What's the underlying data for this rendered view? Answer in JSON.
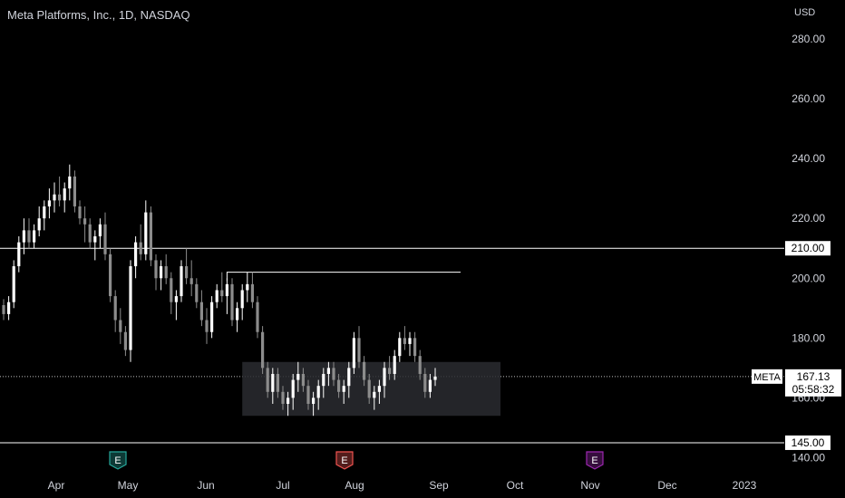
{
  "header": {
    "title": "Meta Platforms, Inc., 1D, NASDAQ",
    "currency": "USD"
  },
  "chart_data": {
    "type": "candlestick",
    "y_ticks": [
      "280.00",
      "260.00",
      "240.00",
      "220.00",
      "200.00",
      "180.00",
      "160.00",
      "140.00"
    ],
    "y_tick_values": [
      280,
      260,
      240,
      220,
      200,
      180,
      160,
      140
    ],
    "ylim": [
      135,
      293
    ],
    "x_ticks": [
      "Apr",
      "May",
      "Jun",
      "Jul",
      "Aug",
      "Sep",
      "Oct",
      "Nov",
      "Dec",
      "2023"
    ],
    "grid": false,
    "horizontal_levels": [
      {
        "value": 210,
        "label": "210.00"
      },
      {
        "value": 145,
        "label": "145.00"
      }
    ],
    "resistance_segment": {
      "value": 202
    },
    "consolidation_box": {
      "low": 154,
      "high": 172
    },
    "last_price": {
      "ticker": "META",
      "value": 167.13,
      "label": "167.13",
      "countdown": "05:58:32"
    },
    "earnings_markers": [
      {
        "label": "E",
        "color": "#26a69a"
      },
      {
        "label": "E",
        "color": "#ef5350"
      },
      {
        "label": "E",
        "color": "#9c27b0"
      }
    ],
    "candles": [
      [
        191,
        193,
        186,
        188
      ],
      [
        188,
        194,
        186,
        192
      ],
      [
        192,
        206,
        190,
        204
      ],
      [
        204,
        214,
        202,
        212
      ],
      [
        212,
        220,
        208,
        216
      ],
      [
        216,
        220,
        210,
        212
      ],
      [
        212,
        218,
        210,
        216
      ],
      [
        216,
        224,
        214,
        220
      ],
      [
        220,
        226,
        216,
        224
      ],
      [
        224,
        230,
        220,
        226
      ],
      [
        226,
        232,
        222,
        228
      ],
      [
        228,
        234,
        224,
        226
      ],
      [
        226,
        232,
        222,
        230
      ],
      [
        230,
        238,
        226,
        234
      ],
      [
        234,
        236,
        222,
        224
      ],
      [
        224,
        226,
        218,
        220
      ],
      [
        220,
        224,
        212,
        218
      ],
      [
        218,
        220,
        210,
        212
      ],
      [
        212,
        216,
        206,
        214
      ],
      [
        214,
        220,
        210,
        218
      ],
      [
        218,
        222,
        206,
        208
      ],
      [
        208,
        210,
        192,
        194
      ],
      [
        194,
        196,
        182,
        186
      ],
      [
        186,
        190,
        178,
        182
      ],
      [
        182,
        184,
        174,
        176
      ],
      [
        176,
        206,
        172,
        204
      ],
      [
        204,
        214,
        200,
        212
      ],
      [
        212,
        218,
        206,
        208
      ],
      [
        208,
        226,
        206,
        222
      ],
      [
        222,
        224,
        204,
        206
      ],
      [
        206,
        208,
        196,
        200
      ],
      [
        200,
        206,
        196,
        204
      ],
      [
        204,
        208,
        198,
        200
      ],
      [
        200,
        202,
        188,
        192
      ],
      [
        192,
        196,
        186,
        194
      ],
      [
        194,
        206,
        192,
        204
      ],
      [
        204,
        210,
        198,
        200
      ],
      [
        200,
        206,
        194,
        198
      ],
      [
        198,
        200,
        190,
        192
      ],
      [
        192,
        196,
        184,
        186
      ],
      [
        186,
        190,
        178,
        182
      ],
      [
        182,
        194,
        180,
        192
      ],
      [
        192,
        198,
        190,
        196
      ],
      [
        196,
        202,
        192,
        194
      ],
      [
        194,
        200,
        188,
        198
      ],
      [
        198,
        200,
        184,
        186
      ],
      [
        186,
        192,
        182,
        190
      ],
      [
        190,
        198,
        186,
        196
      ],
      [
        196,
        202,
        192,
        198
      ],
      [
        198,
        202,
        190,
        192
      ],
      [
        192,
        194,
        180,
        182
      ],
      [
        182,
        184,
        168,
        170
      ],
      [
        170,
        172,
        160,
        162
      ],
      [
        162,
        170,
        158,
        168
      ],
      [
        168,
        170,
        160,
        162
      ],
      [
        162,
        164,
        156,
        158
      ],
      [
        158,
        162,
        154,
        160
      ],
      [
        160,
        168,
        156,
        166
      ],
      [
        166,
        172,
        162,
        168
      ],
      [
        168,
        170,
        162,
        164
      ],
      [
        164,
        166,
        156,
        158
      ],
      [
        158,
        162,
        154,
        160
      ],
      [
        160,
        166,
        156,
        164
      ],
      [
        164,
        170,
        160,
        168
      ],
      [
        168,
        172,
        164,
        170
      ],
      [
        170,
        172,
        164,
        166
      ],
      [
        166,
        168,
        160,
        162
      ],
      [
        162,
        166,
        158,
        164
      ],
      [
        164,
        172,
        160,
        170
      ],
      [
        170,
        182,
        168,
        180
      ],
      [
        180,
        184,
        170,
        172
      ],
      [
        172,
        174,
        164,
        166
      ],
      [
        166,
        168,
        158,
        160
      ],
      [
        160,
        164,
        156,
        162
      ],
      [
        162,
        166,
        158,
        164
      ],
      [
        164,
        172,
        160,
        170
      ],
      [
        170,
        174,
        166,
        168
      ],
      [
        168,
        176,
        166,
        174
      ],
      [
        174,
        182,
        172,
        180
      ],
      [
        180,
        184,
        176,
        178
      ],
      [
        178,
        182,
        174,
        180
      ],
      [
        180,
        182,
        172,
        174
      ],
      [
        174,
        176,
        166,
        168
      ],
      [
        168,
        170,
        160,
        162
      ],
      [
        162,
        168,
        160,
        166
      ],
      [
        166,
        170,
        164,
        167.13
      ]
    ]
  }
}
